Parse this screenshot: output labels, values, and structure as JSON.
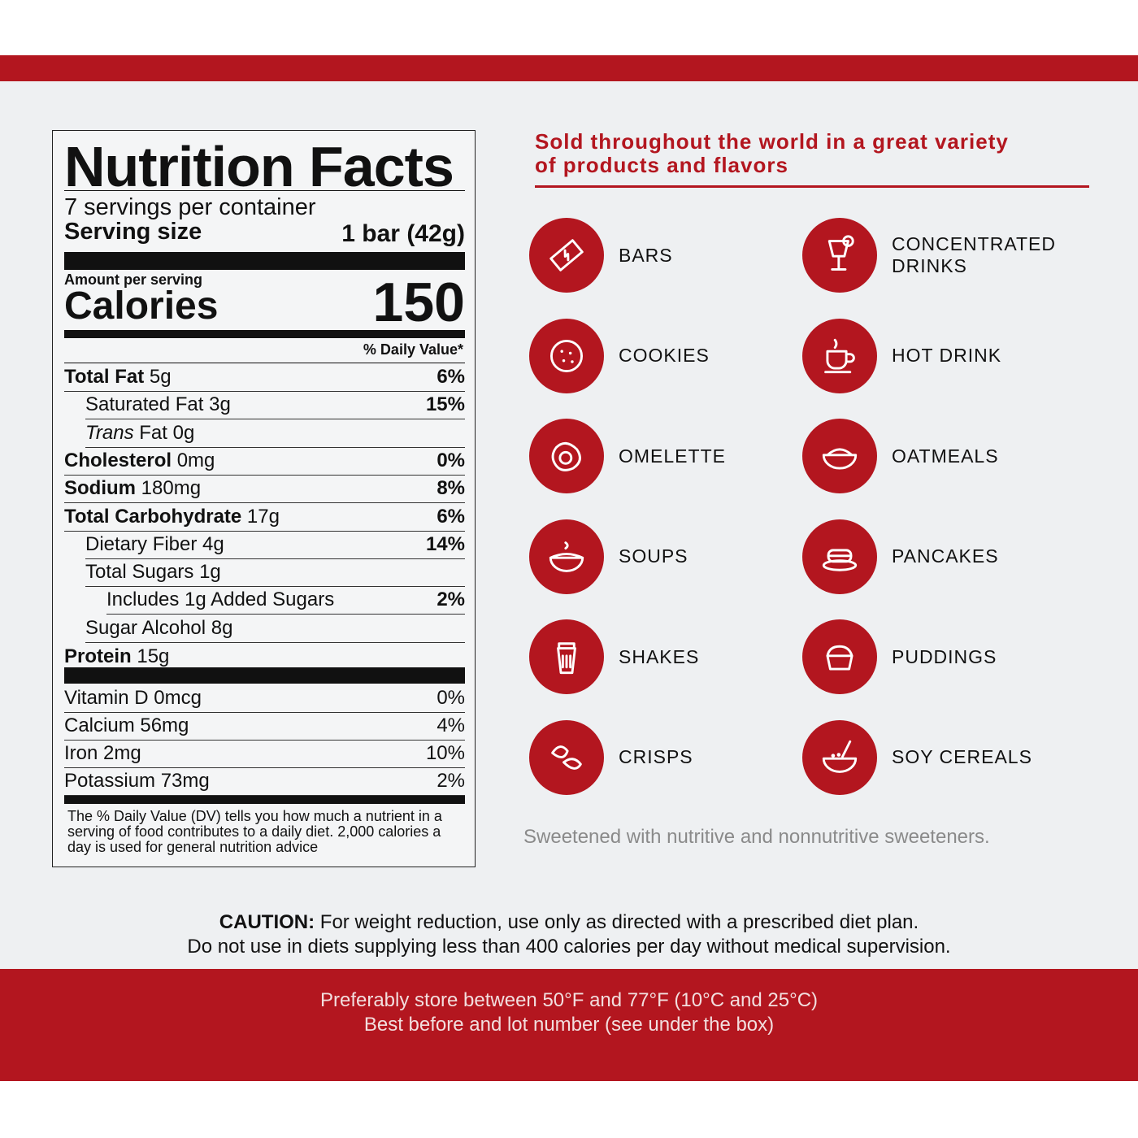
{
  "colors": {
    "brand_red": "#b3161f",
    "paper": "#eef0f2"
  },
  "nutrition": {
    "title": "Nutrition Facts",
    "servings": "7 servings per container",
    "serving_size_label": "Serving size",
    "serving_size_value": "1 bar (42g)",
    "amount_per_serving": "Amount per serving",
    "calories_label": "Calories",
    "calories_value": "150",
    "dv_header": "% Daily Value*",
    "rows": [
      {
        "name": "Total Fat",
        "amount": "5g",
        "dv": "6%",
        "indent": 0,
        "bold": true
      },
      {
        "name": "Saturated Fat",
        "amount": "3g",
        "dv": "15%",
        "indent": 1
      },
      {
        "name": "Trans",
        "amount": "Fat 0g",
        "dv": "",
        "indent": 1,
        "italic": true
      },
      {
        "name": "Cholesterol",
        "amount": "0mg",
        "dv": "0%",
        "indent": 0,
        "bold": true
      },
      {
        "name": "Sodium",
        "amount": "180mg",
        "dv": "8%",
        "indent": 0,
        "bold": true
      },
      {
        "name": "Total Carbohydrate",
        "amount": "17g",
        "dv": "6%",
        "indent": 0,
        "bold": true
      },
      {
        "name": "Dietary Fiber",
        "amount": "4g",
        "dv": "14%",
        "indent": 1
      },
      {
        "name": "Total Sugars",
        "amount": "1g",
        "dv": "",
        "indent": 1
      },
      {
        "name": "Includes 1g Added Sugars",
        "amount": "",
        "dv": "2%",
        "indent": 2
      },
      {
        "name": "Sugar Alcohol",
        "amount": "8g",
        "dv": "",
        "indent": 1
      },
      {
        "name": "Protein",
        "amount": "15g",
        "dv": "",
        "indent": 0,
        "bold": true
      }
    ],
    "vitamins": [
      {
        "name": "Vitamin D 0mcg",
        "dv": "0%"
      },
      {
        "name": "Calcium 56mg",
        "dv": "4%"
      },
      {
        "name": "Iron 2mg",
        "dv": "10%"
      },
      {
        "name": "Potassium 73mg",
        "dv": "2%"
      }
    ],
    "footnote": "The % Daily Value (DV) tells you how much a nutrient in a serving of food contributes to a daily diet. 2,000 calories a day is used for general nutrition advice"
  },
  "products": {
    "title_line1": "Sold throughout the world in a great variety",
    "title_line2": "of products and flavors",
    "items": [
      {
        "label": "BARS",
        "icon": "bar-icon"
      },
      {
        "label": "CONCENTRATED DRINKS",
        "icon": "cocktail-icon"
      },
      {
        "label": "COOKIES",
        "icon": "cookie-icon"
      },
      {
        "label": "HOT DRINK",
        "icon": "coffee-cup-icon"
      },
      {
        "label": "OMELETTE",
        "icon": "fried-egg-icon"
      },
      {
        "label": "OATMEALS",
        "icon": "oatmeal-bowl-icon"
      },
      {
        "label": "SOUPS",
        "icon": "soup-bowl-icon"
      },
      {
        "label": "PANCAKES",
        "icon": "pancakes-icon"
      },
      {
        "label": "SHAKES",
        "icon": "shaker-icon"
      },
      {
        "label": "PUDDINGS",
        "icon": "pudding-icon"
      },
      {
        "label": "CRISPS",
        "icon": "crisps-icon"
      },
      {
        "label": "SOY CEREALS",
        "icon": "cereal-bowl-icon"
      }
    ],
    "sweetener_note": "Sweetened with nutritive and nonnutritive sweeteners."
  },
  "caution": {
    "label": "CAUTION:",
    "line1": " For weight reduction, use only as directed with a prescribed diet plan.",
    "line2": "Do not use in diets supplying less than 400 calories per day without medical supervision."
  },
  "storage": {
    "line1": "Preferably store between 50°F and 77°F (10°C and 25°C)",
    "line2": "Best before and lot number (see under the box)"
  }
}
